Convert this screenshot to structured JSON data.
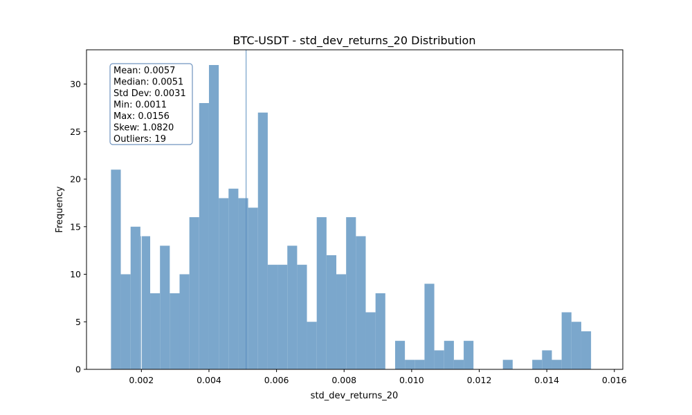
{
  "chart_data": {
    "type": "bar",
    "title": "BTC-USDT - std_dev_returns_20 Distribution",
    "xlabel": "std_dev_returns_20",
    "ylabel": "Frequency",
    "xlim": [
      0.000375,
      0.01625
    ],
    "ylim": [
      0,
      33.6
    ],
    "x_ticks": [
      0.002,
      0.004,
      0.006,
      0.008,
      0.01,
      0.012,
      0.014,
      0.016
    ],
    "x_tick_labels": [
      "0.002",
      "0.004",
      "0.006",
      "0.008",
      "0.010",
      "0.012",
      "0.014",
      "0.016"
    ],
    "y_ticks": [
      0,
      5,
      10,
      15,
      20,
      25,
      30
    ],
    "y_tick_labels": [
      "0",
      "5",
      "10",
      "15",
      "20",
      "25",
      "30"
    ],
    "bins": {
      "start": 0.0011,
      "end": 0.0156,
      "count": 50
    },
    "values": [
      21,
      10,
      15,
      14,
      8,
      13,
      8,
      10,
      16,
      28,
      32,
      18,
      19,
      18,
      17,
      27,
      11,
      11,
      13,
      11,
      5,
      16,
      12,
      10,
      16,
      14,
      6,
      8,
      0,
      3,
      1,
      1,
      9,
      2,
      3,
      1,
      3,
      0,
      0,
      0,
      1,
      0,
      0,
      1,
      2,
      1,
      6,
      5,
      4,
      0
    ],
    "bar_color": "#7ba7cc",
    "grid": false,
    "vlines": [
      {
        "x": 0.0051,
        "color": "#5b8fbf"
      },
      {
        "x": 0.002,
        "color": "#ffffff"
      }
    ],
    "stats_box": {
      "lines": [
        "Mean: 0.0057",
        "Median: 0.0051",
        "Std Dev: 0.0031",
        "Min: 0.0011",
        "Max: 0.0156",
        "Skew: 1.0820",
        "Outliers: 19"
      ],
      "border_color": "#6f93bf",
      "placement": "top-left"
    }
  }
}
